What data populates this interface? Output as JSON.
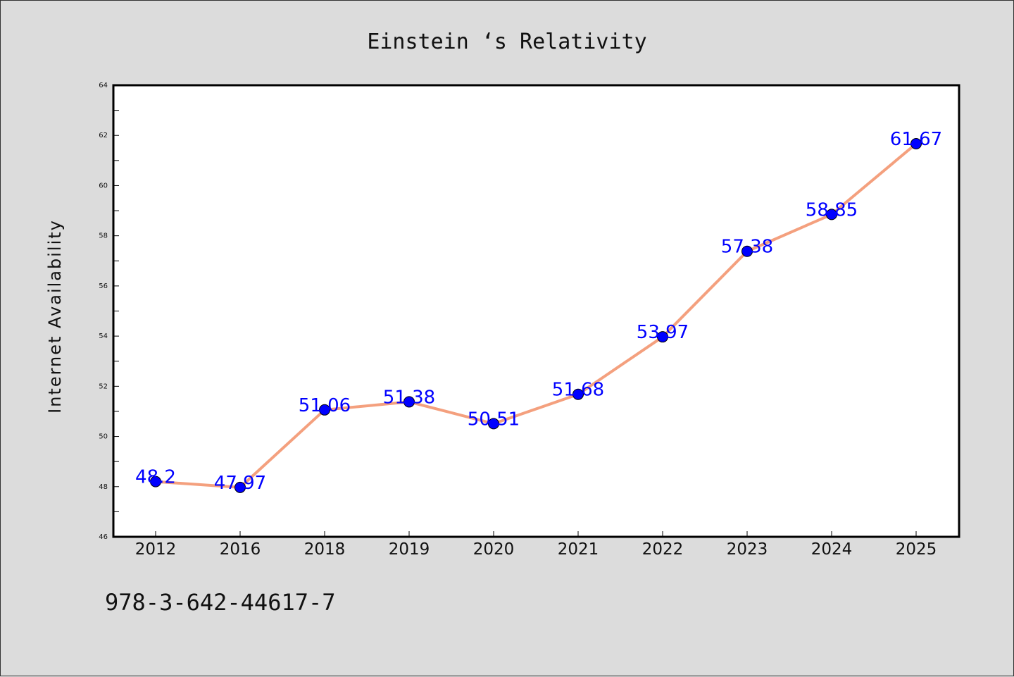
{
  "chart_data": {
    "type": "line",
    "title": "Einstein ‘s Relativity",
    "xlabel": "",
    "ylabel": "Internet Availability",
    "categories": [
      "2012",
      "2016",
      "2018",
      "2019",
      "2020",
      "2021",
      "2022",
      "2023",
      "2024",
      "2025"
    ],
    "series": [
      {
        "values": [
          48.2,
          47.97,
          51.06,
          51.38,
          50.51,
          51.68,
          53.97,
          57.38,
          58.85,
          61.67
        ],
        "labels": [
          "48.2",
          "47.97",
          "51.06",
          "51.38",
          "50.51",
          "51.68",
          "53.97",
          "57.38",
          "58.85",
          "61.67"
        ]
      }
    ],
    "ylim": [
      46,
      64
    ],
    "yticks": [
      "46",
      "48",
      "50",
      "52",
      "54",
      "56",
      "58",
      "60",
      "62",
      "64"
    ],
    "grid": false,
    "line_color": "#f4a07e",
    "marker_color": "#0000ff",
    "label_color": "#0000ff"
  },
  "footer": {
    "isbn": "978-3-642-44617-7"
  }
}
